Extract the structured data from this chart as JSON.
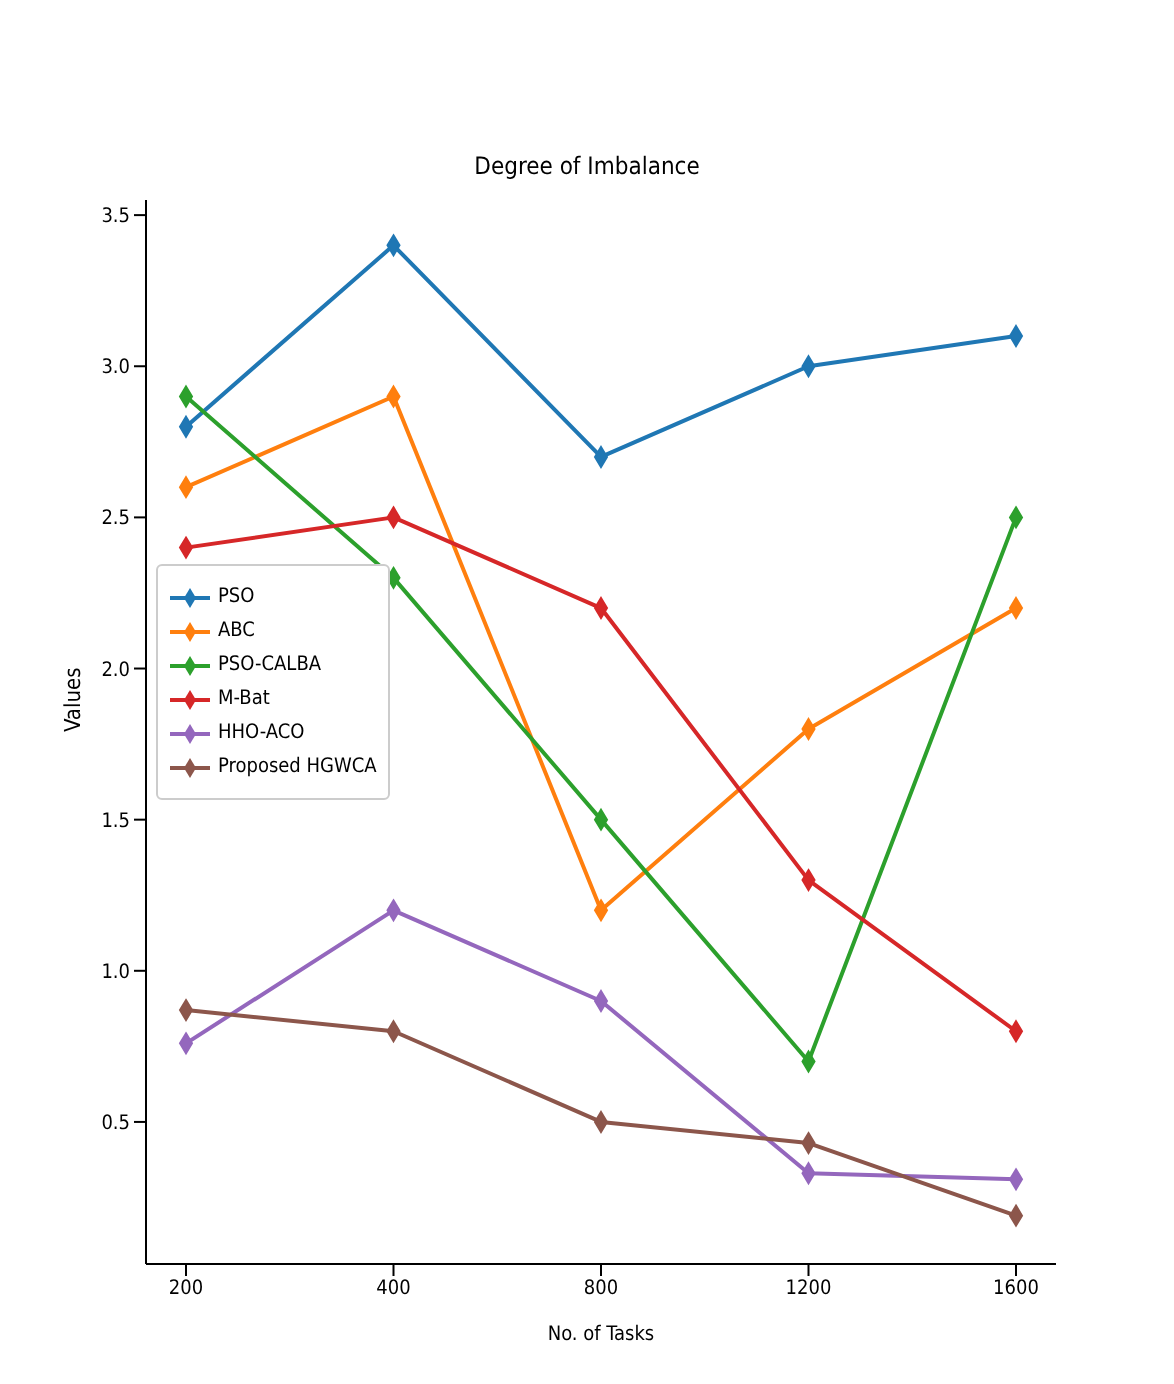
{
  "chart_data": {
    "type": "line",
    "title": "Degree of Imbalance",
    "xlabel": "No. of Tasks",
    "ylabel": "Values",
    "categories": [
      "200",
      "400",
      "800",
      "1200",
      "1600"
    ],
    "series": [
      {
        "name": "PSO",
        "color": "#1f77b4",
        "values": [
          2.8,
          3.4,
          2.7,
          3.0,
          3.1
        ]
      },
      {
        "name": "ABC",
        "color": "#ff7f0e",
        "values": [
          2.6,
          2.9,
          1.2,
          1.8,
          2.2
        ]
      },
      {
        "name": "PSO-CALBA",
        "color": "#2ca02c",
        "values": [
          2.9,
          2.3,
          1.5,
          0.7,
          2.5
        ]
      },
      {
        "name": "M-Bat",
        "color": "#d62728",
        "values": [
          2.4,
          2.5,
          2.2,
          1.3,
          0.8
        ]
      },
      {
        "name": "HHO-ACO",
        "color": "#9467bd",
        "values": [
          0.76,
          1.2,
          0.9,
          0.33,
          0.31
        ]
      },
      {
        "name": "Proposed HGWCA",
        "color": "#8c564b",
        "values": [
          0.87,
          0.8,
          0.5,
          0.43,
          0.19
        ]
      }
    ],
    "ylim": [
      0.03,
      3.55
    ],
    "yticks": [
      0.5,
      {
        "value": 1,
        "label": "1.0"
      },
      1.5,
      {
        "value": 2,
        "label": "2.0"
      },
      2.5,
      {
        "value": 3,
        "label": "3.0"
      },
      3.5
    ],
    "legend": "center left",
    "marker": "diamond",
    "line_style": "solid",
    "grid": false
  }
}
